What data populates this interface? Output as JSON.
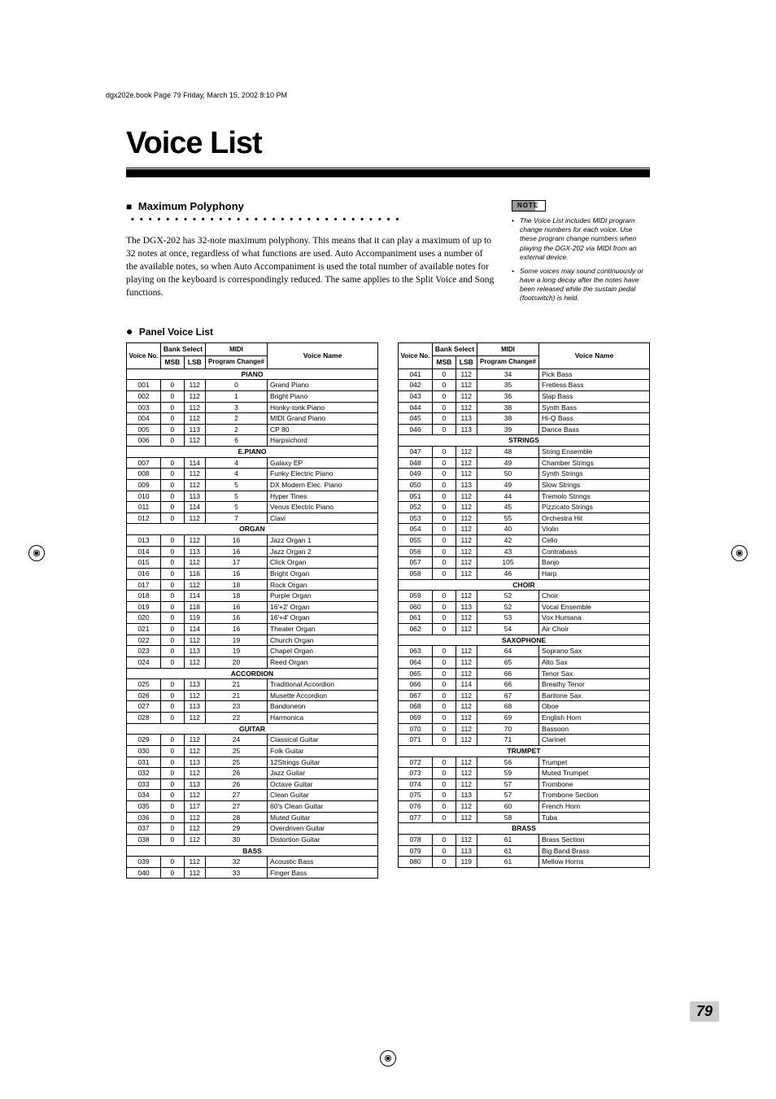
{
  "header_line": "dgx202e.book  Page 79  Friday, March 15, 2002  8:10 PM",
  "title": "Voice List",
  "subhead_prefix": "■",
  "subhead": "Maximum Polyphony",
  "body": "The DGX-202 has 32-note maximum polyphony. This means that it can play a maximum of up to 32 notes at once, regardless of what functions are used. Auto Accompaniment uses a number of the available notes, so when Auto Accompaniment is used the total number of available notes for playing on the keyboard is correspondingly reduced. The same applies to the Split Voice and Song functions.",
  "note_label": "NOTE",
  "notes": [
    "The Voice List includes MIDI program change numbers for each voice. Use these program change numbers when playing the DGX-202 via MIDI from an external device.",
    "Some voices may sound continuously or have a long decay after the notes have been released while the sustain pedal (footswitch) is held."
  ],
  "panel_head": "Panel Voice List",
  "cols": {
    "voice_no": "Voice No.",
    "bank_select": "Bank Select",
    "msb": "MSB",
    "lsb": "LSB",
    "midi": "MIDI Program Change#",
    "midi_short_top": "MIDI",
    "midi_short_bot": "Program Change#",
    "voice_name": "Voice Name"
  },
  "left_table": [
    {
      "cat": "PIANO"
    },
    {
      "no": "001",
      "msb": "0",
      "lsb": "112",
      "pc": "0",
      "name": "Grand Piano"
    },
    {
      "no": "002",
      "msb": "0",
      "lsb": "112",
      "pc": "1",
      "name": "Bright Piano"
    },
    {
      "no": "003",
      "msb": "0",
      "lsb": "112",
      "pc": "3",
      "name": "Honky-tonk Piano"
    },
    {
      "no": "004",
      "msb": "0",
      "lsb": "112",
      "pc": "2",
      "name": "MIDI Grand Piano"
    },
    {
      "no": "005",
      "msb": "0",
      "lsb": "113",
      "pc": "2",
      "name": "CP 80"
    },
    {
      "no": "006",
      "msb": "0",
      "lsb": "112",
      "pc": "6",
      "name": "Harpsichord"
    },
    {
      "cat": "E.PIANO"
    },
    {
      "no": "007",
      "msb": "0",
      "lsb": "114",
      "pc": "4",
      "name": "Galaxy EP"
    },
    {
      "no": "008",
      "msb": "0",
      "lsb": "112",
      "pc": "4",
      "name": "Funky Electric Piano"
    },
    {
      "no": "009",
      "msb": "0",
      "lsb": "112",
      "pc": "5",
      "name": "DX Modern Elec. Piano"
    },
    {
      "no": "010",
      "msb": "0",
      "lsb": "113",
      "pc": "5",
      "name": "Hyper Tines"
    },
    {
      "no": "011",
      "msb": "0",
      "lsb": "114",
      "pc": "5",
      "name": "Venus Electric Piano"
    },
    {
      "no": "012",
      "msb": "0",
      "lsb": "112",
      "pc": "7",
      "name": "Clavi"
    },
    {
      "cat": "ORGAN"
    },
    {
      "no": "013",
      "msb": "0",
      "lsb": "112",
      "pc": "16",
      "name": "Jazz Organ 1"
    },
    {
      "no": "014",
      "msb": "0",
      "lsb": "113",
      "pc": "16",
      "name": "Jazz Organ 2"
    },
    {
      "no": "015",
      "msb": "0",
      "lsb": "112",
      "pc": "17",
      "name": "Click Organ"
    },
    {
      "no": "016",
      "msb": "0",
      "lsb": "116",
      "pc": "16",
      "name": "Bright Organ"
    },
    {
      "no": "017",
      "msb": "0",
      "lsb": "112",
      "pc": "18",
      "name": "Rock Organ"
    },
    {
      "no": "018",
      "msb": "0",
      "lsb": "114",
      "pc": "18",
      "name": "Purple Organ"
    },
    {
      "no": "019",
      "msb": "0",
      "lsb": "118",
      "pc": "16",
      "name": "16'+2' Organ"
    },
    {
      "no": "020",
      "msb": "0",
      "lsb": "119",
      "pc": "16",
      "name": "16'+4' Organ"
    },
    {
      "no": "021",
      "msb": "0",
      "lsb": "114",
      "pc": "16",
      "name": "Theater Organ"
    },
    {
      "no": "022",
      "msb": "0",
      "lsb": "112",
      "pc": "19",
      "name": "Church Organ"
    },
    {
      "no": "023",
      "msb": "0",
      "lsb": "113",
      "pc": "19",
      "name": "Chapel Organ"
    },
    {
      "no": "024",
      "msb": "0",
      "lsb": "112",
      "pc": "20",
      "name": "Reed Organ"
    },
    {
      "cat": "ACCORDION"
    },
    {
      "no": "025",
      "msb": "0",
      "lsb": "113",
      "pc": "21",
      "name": "Traditional Accordion"
    },
    {
      "no": "026",
      "msb": "0",
      "lsb": "112",
      "pc": "21",
      "name": "Musette Accordion"
    },
    {
      "no": "027",
      "msb": "0",
      "lsb": "113",
      "pc": "23",
      "name": "Bandoneon"
    },
    {
      "no": "028",
      "msb": "0",
      "lsb": "112",
      "pc": "22",
      "name": "Harmonica"
    },
    {
      "cat": "GUITAR"
    },
    {
      "no": "029",
      "msb": "0",
      "lsb": "112",
      "pc": "24",
      "name": "Classical Guitar"
    },
    {
      "no": "030",
      "msb": "0",
      "lsb": "112",
      "pc": "25",
      "name": "Folk Guitar"
    },
    {
      "no": "031",
      "msb": "0",
      "lsb": "113",
      "pc": "25",
      "name": "12Strings Guitar"
    },
    {
      "no": "032",
      "msb": "0",
      "lsb": "112",
      "pc": "26",
      "name": "Jazz Guitar"
    },
    {
      "no": "033",
      "msb": "0",
      "lsb": "113",
      "pc": "26",
      "name": "Octave Guitar"
    },
    {
      "no": "034",
      "msb": "0",
      "lsb": "112",
      "pc": "27",
      "name": "Clean Guitar"
    },
    {
      "no": "035",
      "msb": "0",
      "lsb": "117",
      "pc": "27",
      "name": "60's Clean Guitar"
    },
    {
      "no": "036",
      "msb": "0",
      "lsb": "112",
      "pc": "28",
      "name": "Muted Guitar"
    },
    {
      "no": "037",
      "msb": "0",
      "lsb": "112",
      "pc": "29",
      "name": "Overdriven Guitar"
    },
    {
      "no": "038",
      "msb": "0",
      "lsb": "112",
      "pc": "30",
      "name": "Distortion Guitar"
    },
    {
      "cat": "BASS"
    },
    {
      "no": "039",
      "msb": "0",
      "lsb": "112",
      "pc": "32",
      "name": "Acoustic Bass"
    },
    {
      "no": "040",
      "msb": "0",
      "lsb": "112",
      "pc": "33",
      "name": "Finger Bass"
    }
  ],
  "right_table": [
    {
      "no": "041",
      "msb": "0",
      "lsb": "112",
      "pc": "34",
      "name": "Pick Bass"
    },
    {
      "no": "042",
      "msb": "0",
      "lsb": "112",
      "pc": "35",
      "name": "Fretless Bass"
    },
    {
      "no": "043",
      "msb": "0",
      "lsb": "112",
      "pc": "36",
      "name": "Slap Bass"
    },
    {
      "no": "044",
      "msb": "0",
      "lsb": "112",
      "pc": "38",
      "name": "Synth Bass"
    },
    {
      "no": "045",
      "msb": "0",
      "lsb": "113",
      "pc": "38",
      "name": "Hi-Q Bass"
    },
    {
      "no": "046",
      "msb": "0",
      "lsb": "113",
      "pc": "39",
      "name": "Dance Bass"
    },
    {
      "cat": "STRINGS"
    },
    {
      "no": "047",
      "msb": "0",
      "lsb": "112",
      "pc": "48",
      "name": "String Ensemble"
    },
    {
      "no": "048",
      "msb": "0",
      "lsb": "112",
      "pc": "49",
      "name": "Chamber Strings"
    },
    {
      "no": "049",
      "msb": "0",
      "lsb": "112",
      "pc": "50",
      "name": "Synth Strings"
    },
    {
      "no": "050",
      "msb": "0",
      "lsb": "113",
      "pc": "49",
      "name": "Slow Strings"
    },
    {
      "no": "051",
      "msb": "0",
      "lsb": "112",
      "pc": "44",
      "name": "Tremolo Strings"
    },
    {
      "no": "052",
      "msb": "0",
      "lsb": "112",
      "pc": "45",
      "name": "Pizzicato Strings"
    },
    {
      "no": "053",
      "msb": "0",
      "lsb": "112",
      "pc": "55",
      "name": "Orchestra Hit"
    },
    {
      "no": "054",
      "msb": "0",
      "lsb": "112",
      "pc": "40",
      "name": "Violin"
    },
    {
      "no": "055",
      "msb": "0",
      "lsb": "112",
      "pc": "42",
      "name": "Cello"
    },
    {
      "no": "056",
      "msb": "0",
      "lsb": "112",
      "pc": "43",
      "name": "Contrabass"
    },
    {
      "no": "057",
      "msb": "0",
      "lsb": "112",
      "pc": "105",
      "name": "Banjo"
    },
    {
      "no": "058",
      "msb": "0",
      "lsb": "112",
      "pc": "46",
      "name": "Harp"
    },
    {
      "cat": "CHOIR"
    },
    {
      "no": "059",
      "msb": "0",
      "lsb": "112",
      "pc": "52",
      "name": "Choir"
    },
    {
      "no": "060",
      "msb": "0",
      "lsb": "113",
      "pc": "52",
      "name": "Vocal Ensemble"
    },
    {
      "no": "061",
      "msb": "0",
      "lsb": "112",
      "pc": "53",
      "name": "Vox Humana"
    },
    {
      "no": "062",
      "msb": "0",
      "lsb": "112",
      "pc": "54",
      "name": "Air Choir"
    },
    {
      "cat": "SAXOPHONE"
    },
    {
      "no": "063",
      "msb": "0",
      "lsb": "112",
      "pc": "64",
      "name": "Soprano Sax"
    },
    {
      "no": "064",
      "msb": "0",
      "lsb": "112",
      "pc": "65",
      "name": "Alto Sax"
    },
    {
      "no": "065",
      "msb": "0",
      "lsb": "112",
      "pc": "66",
      "name": "Tenor Sax"
    },
    {
      "no": "066",
      "msb": "0",
      "lsb": "114",
      "pc": "66",
      "name": "Breathy Tenor"
    },
    {
      "no": "067",
      "msb": "0",
      "lsb": "112",
      "pc": "67",
      "name": "Baritone Sax"
    },
    {
      "no": "068",
      "msb": "0",
      "lsb": "112",
      "pc": "68",
      "name": "Oboe"
    },
    {
      "no": "069",
      "msb": "0",
      "lsb": "112",
      "pc": "69",
      "name": "English Horn"
    },
    {
      "no": "070",
      "msb": "0",
      "lsb": "112",
      "pc": "70",
      "name": "Bassoon"
    },
    {
      "no": "071",
      "msb": "0",
      "lsb": "112",
      "pc": "71",
      "name": "Clarinet"
    },
    {
      "cat": "TRUMPET"
    },
    {
      "no": "072",
      "msb": "0",
      "lsb": "112",
      "pc": "56",
      "name": "Trumpet"
    },
    {
      "no": "073",
      "msb": "0",
      "lsb": "112",
      "pc": "59",
      "name": "Muted Trumpet"
    },
    {
      "no": "074",
      "msb": "0",
      "lsb": "112",
      "pc": "57",
      "name": "Trombone"
    },
    {
      "no": "075",
      "msb": "0",
      "lsb": "113",
      "pc": "57",
      "name": "Trombone Section"
    },
    {
      "no": "076",
      "msb": "0",
      "lsb": "112",
      "pc": "60",
      "name": "French Horn"
    },
    {
      "no": "077",
      "msb": "0",
      "lsb": "112",
      "pc": "58",
      "name": "Tuba"
    },
    {
      "cat": "BRASS"
    },
    {
      "no": "078",
      "msb": "0",
      "lsb": "112",
      "pc": "61",
      "name": "Brass Section"
    },
    {
      "no": "079",
      "msb": "0",
      "lsb": "113",
      "pc": "61",
      "name": "Big Band Brass"
    },
    {
      "no": "080",
      "msb": "0",
      "lsb": "119",
      "pc": "61",
      "name": "Mellow Horns"
    }
  ],
  "page_number": "79"
}
